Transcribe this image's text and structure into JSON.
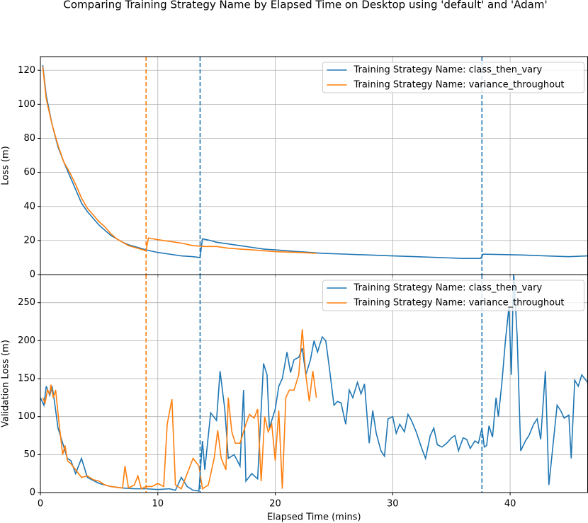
{
  "title": "Comparing Training Strategy Name by Elapsed Time on Desktop using 'default' and 'Adam'",
  "chart_data": [
    {
      "type": "line",
      "ylabel": "Loss (m)",
      "xlim": [
        0,
        46.6
      ],
      "xticks": [
        0,
        10,
        20,
        30,
        40
      ],
      "ylim": [
        0,
        128
      ],
      "yticks": [
        0,
        20,
        40,
        60,
        80,
        100,
        120
      ],
      "grid": true,
      "legend": "upper right",
      "vlines": [
        {
          "x": 9.0,
          "color": "#ff7f0e"
        },
        {
          "x": 13.6,
          "color": "#1f77b4"
        },
        {
          "x": 37.6,
          "color": "#1f77b4"
        }
      ],
      "series": [
        {
          "name": "Training Strategy Name: class_then_vary",
          "color": "#1f77b4",
          "x": [
            0.2,
            0.5,
            1,
            1.5,
            2,
            2.5,
            3,
            3.5,
            4,
            4.5,
            5,
            5.5,
            6,
            6.5,
            7,
            7.5,
            8,
            8.5,
            9,
            10,
            11,
            12,
            13,
            13.6,
            13.8,
            14.5,
            15,
            16,
            17,
            18,
            19,
            20,
            21,
            22,
            23,
            24,
            26,
            28,
            30,
            32,
            34,
            36,
            37.5,
            37.7,
            39,
            41,
            43,
            45,
            46.6
          ],
          "values": [
            123,
            105,
            88,
            75,
            66,
            58,
            50,
            42,
            37,
            33,
            29,
            26,
            23,
            21,
            19,
            17.5,
            16.5,
            15.5,
            14.5,
            13,
            12,
            11,
            10.5,
            10,
            21,
            20,
            19,
            18,
            17,
            16,
            15,
            14.5,
            14,
            13.5,
            13,
            12.5,
            12,
            11.5,
            11,
            10.5,
            10,
            9.5,
            9.5,
            12,
            11.8,
            11.5,
            11,
            10.5,
            11
          ]
        },
        {
          "name": "Training Strategy Name: variance_throughout",
          "color": "#ff7f0e",
          "x": [
            0.2,
            0.5,
            1,
            1.5,
            2,
            2.5,
            3,
            3.5,
            4,
            4.5,
            5,
            5.5,
            6,
            6.5,
            7,
            7.5,
            8,
            8.5,
            9,
            9.2,
            10,
            11,
            12,
            13,
            14,
            15,
            16,
            17,
            18,
            19,
            20,
            22,
            23.5
          ],
          "values": [
            122,
            103,
            88,
            76,
            66,
            60,
            53,
            45,
            39,
            35,
            31,
            28,
            24,
            21,
            19,
            17,
            16,
            15,
            14,
            21.5,
            20.5,
            19.5,
            18.5,
            17,
            16.5,
            16.5,
            15.5,
            15,
            14.5,
            14,
            13.5,
            13,
            12.5
          ]
        }
      ]
    },
    {
      "type": "line",
      "ylabel": "Validation Loss (m)",
      "xlabel": "Elapsed Time (mins)",
      "xlim": [
        0,
        46.6
      ],
      "xticks": [
        0,
        10,
        20,
        30,
        40
      ],
      "ylim": [
        0,
        287
      ],
      "yticks": [
        0,
        50,
        100,
        150,
        200,
        250
      ],
      "grid": true,
      "legend": "upper right",
      "vlines": [
        {
          "x": 9.0,
          "color": "#ff7f0e"
        },
        {
          "x": 13.6,
          "color": "#1f77b4"
        },
        {
          "x": 37.6,
          "color": "#1f77b4"
        }
      ],
      "series": [
        {
          "name": "Training Strategy Name: class_then_vary",
          "color": "#1f77b4",
          "x": [
            0,
            0.3,
            0.5,
            0.8,
            1,
            1.2,
            1.5,
            2,
            2.3,
            2.6,
            3,
            3.5,
            4,
            5,
            6,
            7,
            8,
            9,
            10,
            11,
            11.5,
            12,
            12.5,
            13,
            13.5,
            13.8,
            14,
            14.5,
            15,
            15.3,
            15.7,
            16,
            16.5,
            17,
            17.3,
            17.5,
            18,
            18.5,
            19,
            19.3,
            19.5,
            20,
            20.3,
            20.6,
            21,
            21.3,
            21.6,
            22,
            22.3,
            22.6,
            23,
            23.3,
            23.6,
            24,
            24.3,
            24.6,
            25,
            25.3,
            25.6,
            26,
            26.3,
            26.6,
            27,
            27.3,
            27.6,
            28,
            28.3,
            28.6,
            29,
            29.3,
            29.6,
            30,
            30.3,
            30.6,
            31,
            31.3,
            31.6,
            32,
            32.5,
            32.8,
            33.2,
            33.5,
            33.8,
            34.2,
            34.6,
            35,
            35.3,
            35.6,
            36,
            36.3,
            36.6,
            37,
            37.3,
            37.6,
            37.8,
            38,
            38.2,
            38.5,
            38.8,
            39,
            39.3,
            39.6,
            39.9,
            40.1,
            40.3,
            40.6,
            40.9,
            41.3,
            41.6,
            42,
            42.3,
            42.6,
            43,
            43.3,
            43.6,
            44,
            44.3,
            44.6,
            45,
            45.2,
            45.5,
            45.8,
            46.1,
            46.6
          ],
          "values": [
            125,
            115,
            140,
            128,
            140,
            120,
            85,
            60,
            45,
            42,
            25,
            45,
            20,
            12,
            8,
            6,
            5,
            5,
            4,
            5,
            3,
            20,
            8,
            3,
            2,
            68,
            30,
            105,
            95,
            160,
            110,
            45,
            50,
            35,
            135,
            15,
            25,
            18,
            170,
            155,
            85,
            110,
            140,
            150,
            185,
            158,
            175,
            178,
            190,
            155,
            175,
            200,
            185,
            205,
            200,
            165,
            115,
            120,
            118,
            90,
            135,
            125,
            145,
            130,
            143,
            65,
            108,
            78,
            55,
            48,
            97,
            100,
            78,
            90,
            80,
            103,
            95,
            80,
            57,
            45,
            75,
            85,
            63,
            60,
            65,
            72,
            75,
            55,
            72,
            70,
            58,
            68,
            65,
            85,
            60,
            62,
            88,
            73,
            125,
            100,
            145,
            200,
            245,
            155,
            290,
            205,
            55,
            68,
            75,
            90,
            97,
            70,
            160,
            10,
            55,
            115,
            108,
            98,
            102,
            45,
            148,
            140,
            155,
            145
          ]
        },
        {
          "name": "Training Strategy Name: variance_throughout",
          "color": "#ff7f0e",
          "x": [
            0.2,
            0.4,
            0.6,
            0.8,
            0.9,
            1.1,
            1.3,
            1.6,
            1.9,
            2.1,
            2.3,
            2.6,
            3,
            3.5,
            4,
            4.5,
            5,
            5.5,
            6,
            7,
            7.2,
            7.5,
            8,
            8.3,
            8.6,
            9,
            9.5,
            10,
            10.5,
            10.8,
            11.2,
            11.5,
            12,
            13,
            13.5,
            13.8,
            14.3,
            14.8,
            15.1,
            15.4,
            15.8,
            16,
            16.3,
            16.6,
            17,
            17.5,
            17.8,
            18.2,
            18.5,
            18.8,
            19.1,
            19.4,
            19.7,
            20,
            20.3,
            20.6,
            20.9,
            21.2,
            21.6,
            22,
            22.3,
            22.6,
            22.9,
            23.2,
            23.5
          ],
          "values": [
            125,
            118,
            135,
            130,
            142,
            125,
            135,
            90,
            50,
            62,
            42,
            38,
            30,
            20,
            22,
            17,
            15,
            10,
            8,
            6,
            35,
            6,
            10,
            22,
            5,
            8,
            8,
            12,
            8,
            90,
            123,
            10,
            5,
            45,
            35,
            5,
            10,
            45,
            82,
            45,
            30,
            125,
            80,
            65,
            65,
            90,
            103,
            98,
            110,
            15,
            100,
            80,
            90,
            42,
            108,
            5,
            125,
            135,
            135,
            155,
            215,
            155,
            120,
            160,
            125
          ]
        }
      ]
    }
  ]
}
